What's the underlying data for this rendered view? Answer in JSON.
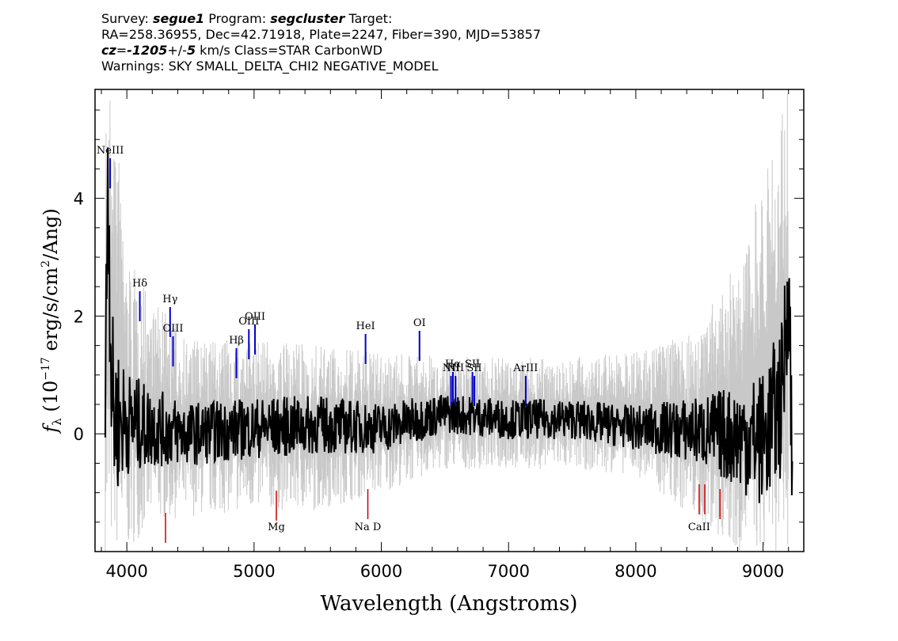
{
  "header": {
    "survey_label": "Survey: ",
    "survey": "segue1",
    "program_label": " Program: ",
    "program": "segcluster",
    "target_label": " Target:",
    "line2": "RA=258.36955, Dec=42.71918, Plate=2247, Fiber=390, MJD=53857",
    "cz_label": "cz",
    "cz_eq": "=",
    "cz_value": "-1205",
    "cz_pm": "+/-",
    "cz_err": "5",
    "cz_rest": " km/s Class=STAR CarbonWD",
    "line4": "Warnings: SKY SMALL_DELTA_CHI2 NEGATIVE_MODEL"
  },
  "chart_data": {
    "type": "line",
    "xlabel": "Wavelength (Angstroms)",
    "ylabel": "f_λ (10^-17 erg/s/cm^2/Ang)",
    "xlim": [
      3750,
      9320
    ],
    "ylim": [
      -2.0,
      5.85
    ],
    "xticks": [
      4000,
      5000,
      6000,
      7000,
      8000,
      9000
    ],
    "yticks": [
      0,
      2,
      4
    ],
    "grid": false,
    "series": [
      {
        "role": "error envelope",
        "color": "#c8c8c8",
        "x": [
          3830,
          3900,
          4000,
          4200,
          4500,
          5000,
          5500,
          6000,
          6500,
          7000,
          7500,
          8000,
          8500,
          8800,
          9000,
          9200
        ],
        "y_low": [
          -2.0,
          -2.0,
          -2.0,
          -1.5,
          -1.4,
          -1.3,
          -1.3,
          -1.0,
          -0.6,
          -0.6,
          -0.6,
          -0.7,
          -1.5,
          -2.0,
          -2.0,
          -2.0
        ],
        "y_high": [
          5.85,
          5.85,
          3.0,
          2.3,
          1.6,
          1.6,
          1.5,
          1.4,
          1.3,
          1.3,
          1.3,
          1.4,
          1.8,
          3.0,
          4.5,
          5.85
        ]
      },
      {
        "role": "spectrum",
        "color": "#000000",
        "x": [
          3830,
          3850,
          3880,
          3900,
          4000,
          4200,
          4500,
          5000,
          5500,
          6000,
          6500,
          7000,
          7500,
          8000,
          8500,
          9000,
          9150,
          9200,
          9230
        ],
        "y": [
          0.2,
          4.6,
          0.9,
          0.3,
          0.2,
          0.1,
          0.0,
          0.1,
          0.15,
          0.1,
          0.35,
          0.25,
          0.25,
          0.1,
          0.05,
          -0.1,
          0.6,
          2.8,
          -0.8
        ]
      }
    ],
    "emission_lines": [
      {
        "label": "NeIII",
        "x": 3869
      },
      {
        "label": "Hδ",
        "x": 4102
      },
      {
        "label": "Hγ",
        "x": 4340
      },
      {
        "label": "OIII",
        "x": 4363
      },
      {
        "label": "Hβ",
        "x": 4861
      },
      {
        "label": "OIII",
        "x": 4959
      },
      {
        "label": "OIII",
        "x": 5007
      },
      {
        "label": "HeI",
        "x": 5876
      },
      {
        "label": "OI",
        "x": 6300
      },
      {
        "label": "NII",
        "x": 6548
      },
      {
        "label": "Hα",
        "x": 6563
      },
      {
        "label": "NII",
        "x": 6583
      },
      {
        "label": "SII",
        "x": 6716
      },
      {
        "label": "SII",
        "x": 6731
      },
      {
        "label": "ArIII",
        "x": 7135
      }
    ],
    "absorption_lines": [
      {
        "label": "",
        "x": 4304
      },
      {
        "label": "Mg",
        "x": 5175
      },
      {
        "label": "Na D",
        "x": 5894
      },
      {
        "label": "CaII",
        "x": 8498
      },
      {
        "label": "",
        "x": 8542
      },
      {
        "label": "",
        "x": 8662
      }
    ],
    "colors": {
      "emission": "#0000cc",
      "absorption": "#cc0000",
      "envelope": "#c8c8c8",
      "spectrum": "#000000"
    }
  }
}
